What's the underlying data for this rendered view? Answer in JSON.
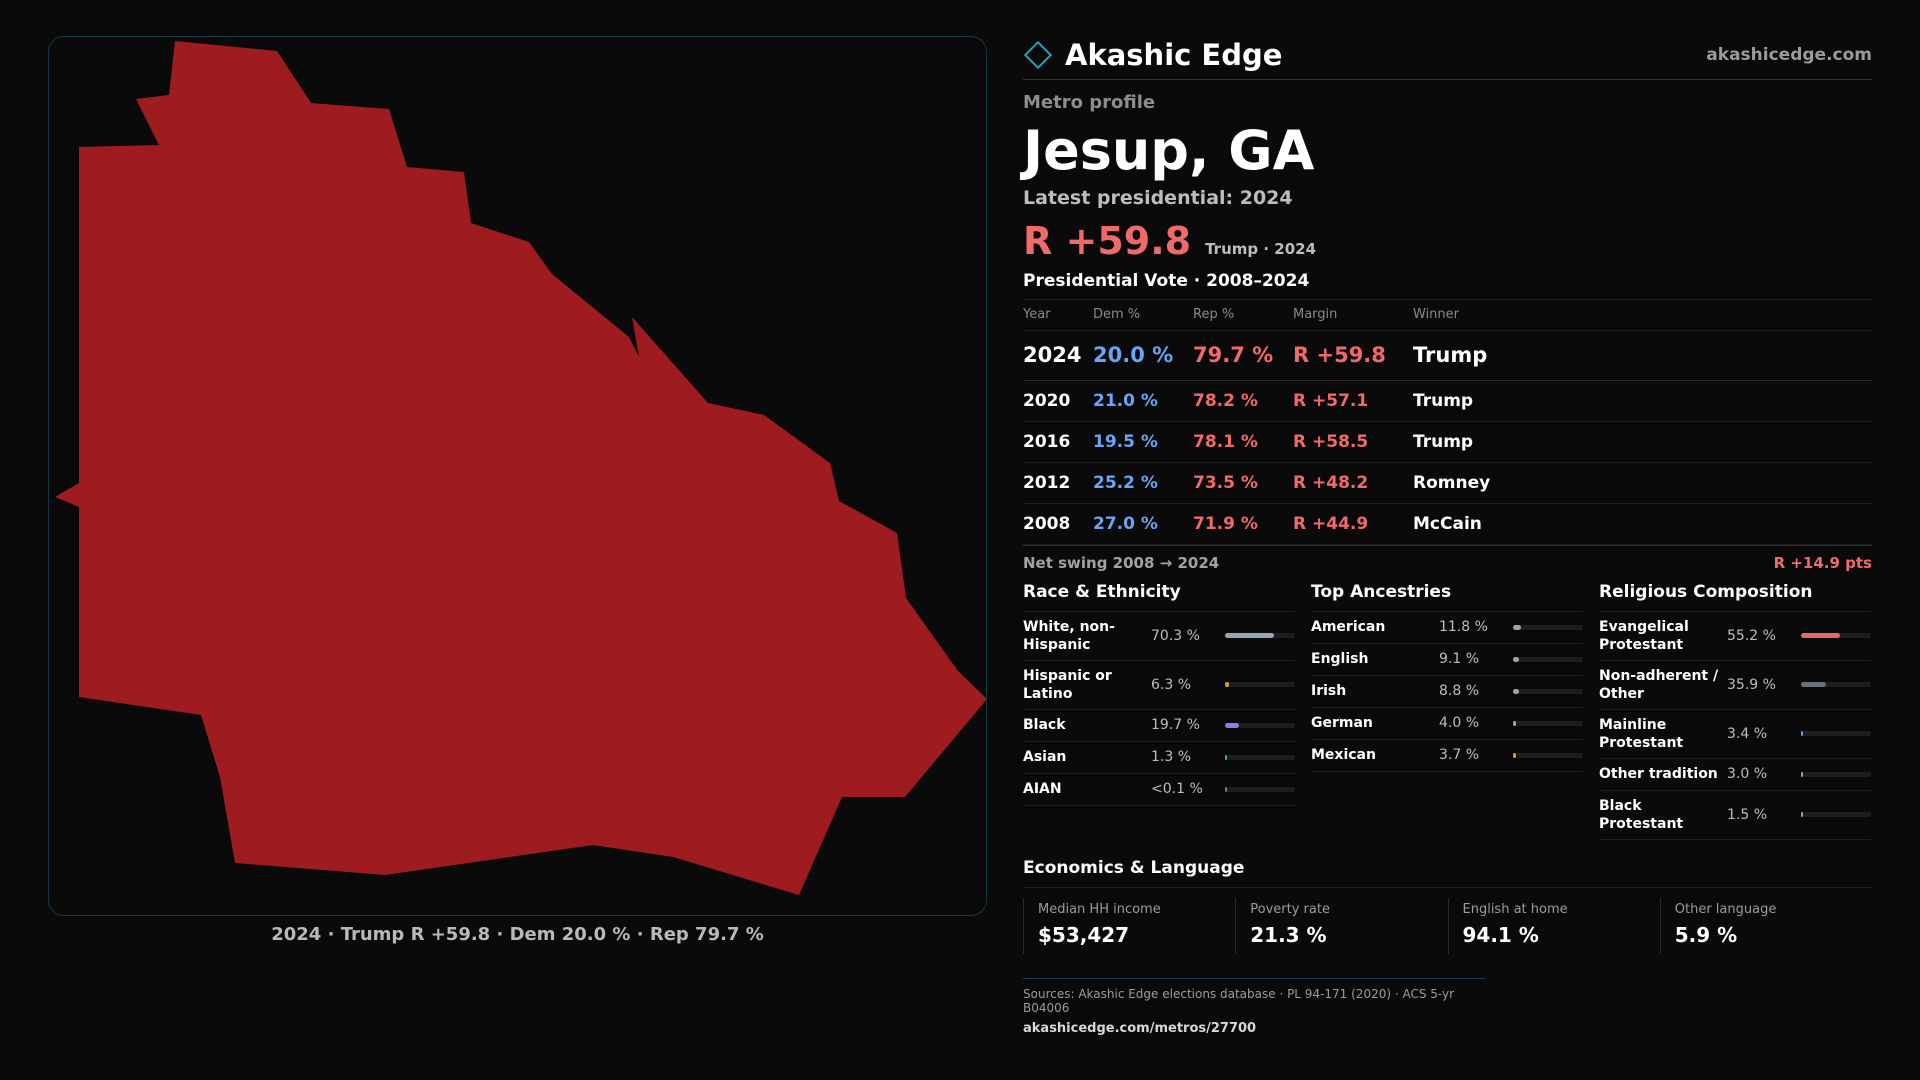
{
  "map": {
    "caption": "2024 · Trump R +59.8 · Dem 20.0 % · Rep 79.7 %",
    "fill_color": "#9e1b1f"
  },
  "brand": {
    "name": "Akashic Edge",
    "site": "akashicedge.com",
    "logo": "diamond-icon"
  },
  "profile": {
    "kicker": "Metro profile",
    "title": "Jesup, GA",
    "latest": "Latest presidential: 2024",
    "margin": "R +59.8",
    "margin_sub": "Trump · 2024"
  },
  "votes": {
    "title": "Presidential Vote · 2008–2024",
    "headers": [
      "Year",
      "Dem %",
      "Rep %",
      "Margin",
      "Winner"
    ],
    "rows": [
      {
        "year": "2024",
        "dem": "20.0 %",
        "rep": "79.7 %",
        "margin": "R +59.8",
        "winner": "Trump"
      },
      {
        "year": "2020",
        "dem": "21.0 %",
        "rep": "78.2 %",
        "margin": "R +57.1",
        "winner": "Trump"
      },
      {
        "year": "2016",
        "dem": "19.5 %",
        "rep": "78.1 %",
        "margin": "R +58.5",
        "winner": "Trump"
      },
      {
        "year": "2012",
        "dem": "25.2 %",
        "rep": "73.5 %",
        "margin": "R +48.2",
        "winner": "Romney"
      },
      {
        "year": "2008",
        "dem": "27.0 %",
        "rep": "71.9 %",
        "margin": "R +44.9",
        "winner": "McCain"
      }
    ],
    "swing_label": "Net swing 2008 → 2024",
    "swing_value": "R +14.9 pts"
  },
  "race": {
    "title": "Race & Ethnicity",
    "rows": [
      {
        "label": "White, non-Hispanic",
        "value": "70.3 %",
        "frac": 0.703,
        "color": "#9aa3b8"
      },
      {
        "label": "Hispanic or Latino",
        "value": "6.3 %",
        "frac": 0.063,
        "color": "#e09a2a"
      },
      {
        "label": "Black",
        "value": "19.7 %",
        "frac": 0.197,
        "color": "#8b7ee0"
      },
      {
        "label": "Asian",
        "value": "1.3 %",
        "frac": 0.013,
        "color": "#3bb4a0"
      },
      {
        "label": "AIAN",
        "value": "<0.1 %",
        "frac": 0.001,
        "color": "#777777"
      }
    ]
  },
  "ancestry": {
    "title": "Top Ancestries",
    "rows": [
      {
        "label": "American",
        "value": "11.8 %",
        "frac": 0.118,
        "color": "#9aa3b8"
      },
      {
        "label": "English",
        "value": "9.1 %",
        "frac": 0.091,
        "color": "#9aa3b8"
      },
      {
        "label": "Irish",
        "value": "8.8 %",
        "frac": 0.088,
        "color": "#9aa3b8"
      },
      {
        "label": "German",
        "value": "4.0 %",
        "frac": 0.04,
        "color": "#9aa3b8"
      },
      {
        "label": "Mexican",
        "value": "3.7 %",
        "frac": 0.037,
        "color": "#e09a2a"
      }
    ]
  },
  "religion": {
    "title": "Religious Composition",
    "rows": [
      {
        "label": "Evangelical Protestant",
        "value": "55.2 %",
        "frac": 0.552,
        "color": "#e0696d"
      },
      {
        "label": "Non-adherent / Other",
        "value": "35.9 %",
        "frac": 0.359,
        "color": "#69707e"
      },
      {
        "label": "Mainline Protestant",
        "value": "3.4 %",
        "frac": 0.034,
        "color": "#5e9be8"
      },
      {
        "label": "Other tradition",
        "value": "3.0 %",
        "frac": 0.03,
        "color": "#9aa3b8"
      },
      {
        "label": "Black Protestant",
        "value": "1.5 %",
        "frac": 0.015,
        "color": "#9aa3b8"
      }
    ]
  },
  "economics": {
    "title": "Economics & Language",
    "cells": [
      {
        "label": "Median HH income",
        "value": "$53,427"
      },
      {
        "label": "Poverty rate",
        "value": "21.3 %"
      },
      {
        "label": "English at home",
        "value": "94.1 %"
      },
      {
        "label": "Other language",
        "value": "5.9 %"
      }
    ]
  },
  "sources": {
    "text": "Sources: Akashic Edge elections database · PL 94-171 (2020) · ACS 5-yr B04006",
    "url": "akashicedge.com/metros/27700"
  }
}
